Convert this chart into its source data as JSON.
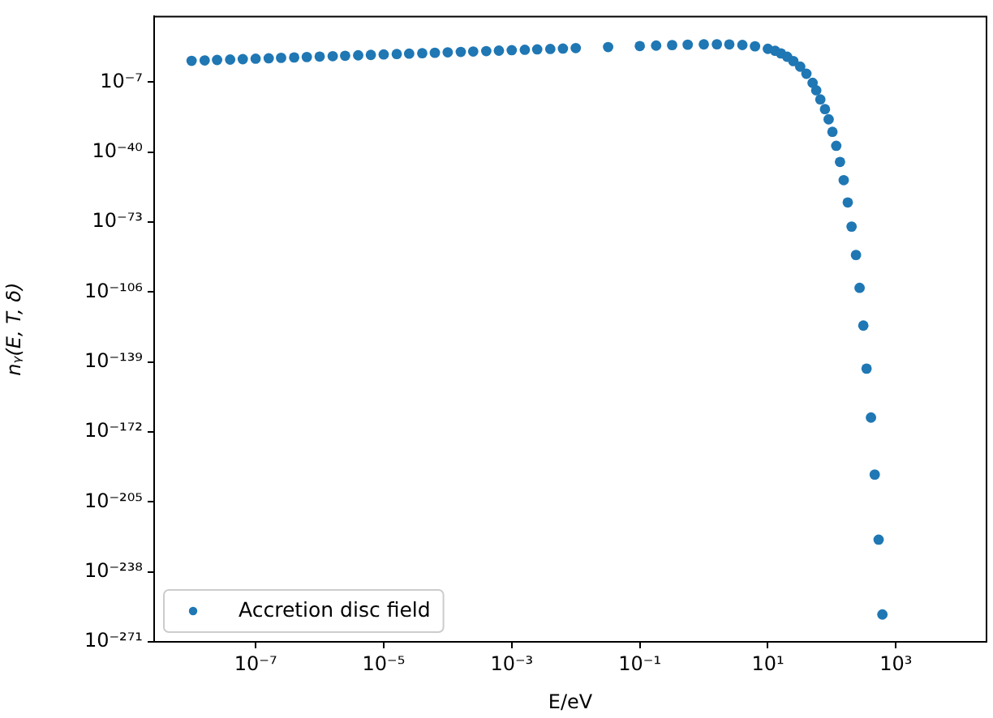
{
  "chart_data": {
    "type": "scatter",
    "xlabel": "E/eV",
    "ylabel": "nᵧ(E, T, δ)",
    "log": "xy",
    "grid": false,
    "legend": "bottom left",
    "marker": "circle",
    "xlim": [
      2.6e-09,
      26000.0
    ],
    "xticks": [
      {
        "value": 1e-07,
        "label": "10⁻⁷"
      },
      {
        "value": 1e-05,
        "label": "10⁻⁵"
      },
      {
        "value": 0.001,
        "label": "10⁻³"
      },
      {
        "value": 0.1,
        "label": "10⁻¹"
      },
      {
        "value": 10,
        "label": "10¹"
      },
      {
        "value": 1000,
        "label": "10³"
      }
    ],
    "ylim": [
      1e-271,
      1e+24
    ],
    "yticks": [
      {
        "value": 1e-07,
        "label": "10⁻⁷"
      },
      {
        "value": 1e-40,
        "label": "10⁻⁴⁰"
      },
      {
        "value": 1e-73,
        "label": "10⁻⁷³"
      },
      {
        "value": 1e-106,
        "label": "10⁻¹⁰⁶"
      },
      {
        "value": 1e-139,
        "label": "10⁻¹³⁹"
      },
      {
        "value": 1e-172,
        "label": "10⁻¹⁷²"
      },
      {
        "value": 1e-205,
        "label": "10⁻²⁰⁵"
      },
      {
        "value": 1e-238,
        "label": "10⁻²³⁸"
      },
      {
        "value": 1e-271,
        "label": "10⁻²⁷¹"
      }
    ],
    "series": [
      {
        "name": "Accretion disc field",
        "color": "#1f77b4",
        "x": [
          1e-08,
          1.6e-08,
          2.5e-08,
          4e-08,
          6.3e-08,
          1e-07,
          1.6e-07,
          2.5e-07,
          4e-07,
          6.3e-07,
          1e-06,
          1.6e-06,
          2.5e-06,
          4e-06,
          6.3e-06,
          1e-05,
          1.6e-05,
          2.5e-05,
          4e-05,
          6.3e-05,
          0.0001,
          0.00016,
          0.00025,
          0.0004,
          0.00063,
          0.001,
          0.0016,
          0.0025,
          0.004,
          0.0063,
          0.01,
          0.032,
          0.1,
          0.18,
          0.32,
          0.56,
          1,
          1.6,
          2.5,
          4,
          6.3,
          10,
          13,
          16,
          20,
          25,
          32,
          40,
          50,
          57,
          66,
          78,
          89,
          102,
          117,
          134,
          153,
          177,
          203,
          238,
          271,
          310,
          348,
          408,
          467,
          537,
          615
        ],
        "values": [
          1300.0,
          2000.0,
          3200.0,
          5000.0,
          7900.0,
          13000.0,
          20000.0,
          32000.0,
          50000.0,
          79000.0,
          130000.0,
          200000.0,
          320000.0,
          500000.0,
          790000.0,
          1300000.0,
          2000000.0,
          3200000.0,
          5000000.0,
          7900000.0,
          13000000.0,
          20000000.0,
          32000000.0,
          50000000.0,
          79000000.0,
          130000000.0,
          200000000.0,
          320000000.0,
          500000000.0,
          790000000.0,
          1300000000.0,
          3900000000.0,
          12000000000.0,
          20000000000.0,
          34000000000.0,
          52000000000.0,
          74000000000.0,
          81000000000.0,
          71000000000.0,
          38000000000.0,
          9100000000.0,
          580000000.0,
          68000000.0,
          4200000.0,
          110000.0,
          980.0,
          2.3,
          0.001,
          5.4e-08,
          1.6e-11,
          7.9e-16,
          2e-20,
          3.2e-25,
          4e-31,
          1e-37,
          2.5e-45,
          6.3e-54,
          2e-64,
          7.9e-76,
          3.2e-89,
          1e-104,
          1.6e-122,
          7.9e-143,
          6.3e-166,
          7.9e-193,
          1.6e-223,
          7.9e-259
        ]
      }
    ]
  }
}
